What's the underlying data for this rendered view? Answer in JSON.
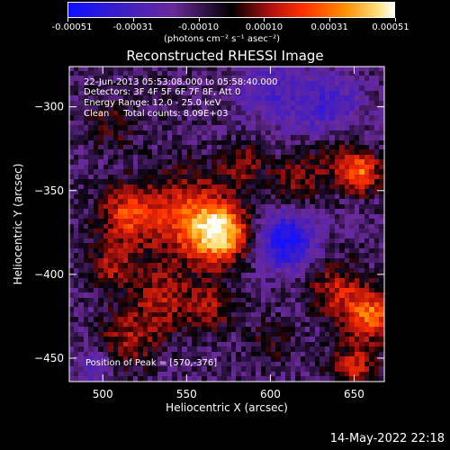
{
  "title": "Reconstructed RHESSI Image",
  "colorbar": {
    "ticks": [
      "-0.00051",
      "-0.00031",
      "-0.00010",
      "0.00010",
      "0.00031",
      "0.00051"
    ],
    "unit_label": "(photons cm⁻² s⁻¹ asec⁻²)",
    "range": [
      -0.00051,
      0.00051
    ]
  },
  "annotations": {
    "line1": "22-Jun-2013 05:53:08.000 to 05:58:40.000",
    "line2": "Detectors: 3F 4F 5F 6F 7F 8F, Att 0",
    "line3": "Energy Range: 12.0 - 25.0 keV",
    "line4": "Clean     Total counts: 8.09E+03",
    "peak": "Position of Peak = [570,-376]"
  },
  "timestamp": "14-May-2022 22:18",
  "chart_data": {
    "type": "heatmap",
    "title": "Reconstructed RHESSI Image",
    "xlabel": "Heliocentric X (arcsec)",
    "ylabel": "Heliocentric Y (arcsec)",
    "xlim": [
      480,
      668
    ],
    "ylim": [
      -464,
      -276
    ],
    "xticks": [
      500,
      550,
      600,
      650
    ],
    "yticks": [
      -450,
      -400,
      -350,
      -300
    ],
    "peak_position": [
      570,
      -376
    ],
    "colormap": [
      "#0000ff",
      "#6a2a9a",
      "#000000",
      "#b01010",
      "#ff3000",
      "#ff9000",
      "#ffffff"
    ],
    "sources": [
      {
        "x": 570,
        "y": -376,
        "sigma": 12,
        "amp": 0.00051
      },
      {
        "x": 550,
        "y": -365,
        "sigma": 18,
        "amp": 0.0003
      },
      {
        "x": 515,
        "y": -365,
        "sigma": 12,
        "amp": 0.0003
      },
      {
        "x": 505,
        "y": -395,
        "sigma": 10,
        "amp": 0.0002
      },
      {
        "x": 535,
        "y": -415,
        "sigma": 14,
        "amp": 0.00022
      },
      {
        "x": 515,
        "y": -440,
        "sigma": 12,
        "amp": 0.0002
      },
      {
        "x": 565,
        "y": -420,
        "sigma": 10,
        "amp": 0.00018
      },
      {
        "x": 585,
        "y": -335,
        "sigma": 9,
        "amp": 0.00018
      },
      {
        "x": 615,
        "y": -345,
        "sigma": 10,
        "amp": 0.00018
      },
      {
        "x": 655,
        "y": -340,
        "sigma": 8,
        "amp": 0.00034
      },
      {
        "x": 640,
        "y": -330,
        "sigma": 12,
        "amp": 0.00016
      },
      {
        "x": 660,
        "y": -425,
        "sigma": 10,
        "amp": 0.00038
      },
      {
        "x": 640,
        "y": -410,
        "sigma": 12,
        "amp": 0.00024
      },
      {
        "x": 650,
        "y": -455,
        "sigma": 10,
        "amp": 0.00024
      },
      {
        "x": 505,
        "y": -310,
        "sigma": 12,
        "amp": 0.00012
      },
      {
        "x": 600,
        "y": -440,
        "sigma": 10,
        "amp": 0.0001
      }
    ],
    "negatives": [
      {
        "x": 610,
        "y": -380,
        "sigma": 12,
        "amp": -0.0004
      },
      {
        "x": 635,
        "y": -300,
        "sigma": 14,
        "amp": -0.00022
      },
      {
        "x": 600,
        "y": -290,
        "sigma": 14,
        "amp": -0.00018
      },
      {
        "x": 495,
        "y": -455,
        "sigma": 8,
        "amp": -0.00015
      }
    ],
    "background": -0.0001
  }
}
